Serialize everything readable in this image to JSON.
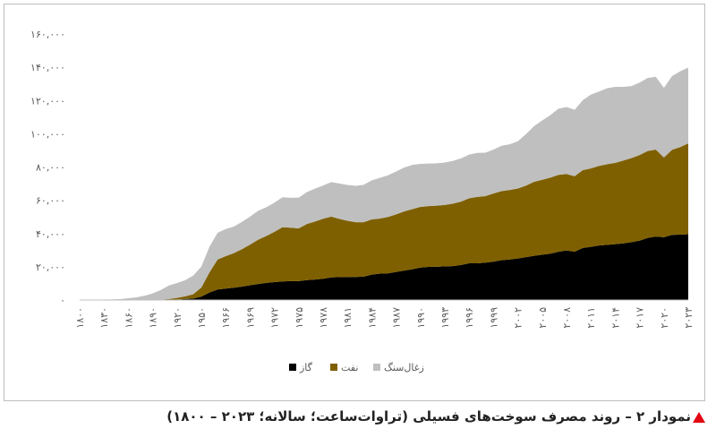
{
  "chart_data": {
    "type": "stacked-area",
    "categories": [
      "۱۸۰۰",
      null,
      null,
      "۱۸۳۰",
      null,
      null,
      "۱۸۶۰",
      null,
      null,
      "۱۸۹۰",
      null,
      null,
      "۱۹۲۰",
      null,
      null,
      "۱۹۵۰",
      null,
      null,
      "۱۹۶۶",
      null,
      null,
      "۱۹۶۹",
      null,
      null,
      "۱۹۷۲",
      null,
      null,
      "۱۹۷۵",
      null,
      null,
      "۱۹۷۸",
      null,
      null,
      "۱۹۸۱",
      null,
      null,
      "۱۹۸۴",
      null,
      null,
      "۱۹۸۷",
      null,
      null,
      "۱۹۹۰",
      null,
      null,
      "۱۹۹۳",
      null,
      null,
      "۱۹۹۶",
      null,
      null,
      "۱۹۹۹",
      null,
      null,
      "۲۰۰۲",
      null,
      null,
      "۲۰۰۵",
      null,
      null,
      "۲۰۰۸",
      null,
      null,
      "۲۰۱۱",
      null,
      null,
      "۲۰۱۴",
      null,
      null,
      "۲۰۱۷",
      null,
      null,
      "۲۰۲۰",
      null,
      null,
      "۲۰۲۳"
    ],
    "series": [
      {
        "name": "گاز",
        "color": "#000000",
        "values": [
          0,
          0,
          0,
          0,
          0,
          0,
          0,
          0,
          0,
          12,
          64,
          150,
          250,
          600,
          900,
          2100,
          4500,
          6300,
          6900,
          7400,
          8100,
          8900,
          9600,
          10300,
          10800,
          11200,
          11400,
          11400,
          12000,
          12300,
          12800,
          13600,
          13800,
          13900,
          13900,
          14100,
          15300,
          15900,
          16000,
          16900,
          17700,
          18500,
          19500,
          19900,
          20000,
          20300,
          20400,
          21100,
          22100,
          22100,
          22500,
          23100,
          24000,
          24400,
          25000,
          25800,
          26600,
          27300,
          27900,
          29000,
          29800,
          29100,
          31300,
          32000,
          32800,
          33200,
          33600,
          34100,
          34800,
          35700,
          37400,
          38200,
          37800,
          39200,
          39300,
          39600
        ]
      },
      {
        "name": "نفت",
        "color": "#7f6000",
        "values": [
          0,
          0,
          0,
          0,
          0,
          0,
          0,
          0,
          0,
          77,
          181,
          478,
          1000,
          1650,
          2600,
          5440,
          12100,
          18100,
          19500,
          20800,
          22500,
          24400,
          26700,
          28200,
          30200,
          32600,
          32100,
          31700,
          33700,
          34900,
          36100,
          36600,
          35000,
          33800,
          32900,
          32700,
          33200,
          33100,
          34000,
          34600,
          35600,
          36200,
          36500,
          36600,
          36800,
          36900,
          37600,
          38100,
          39100,
          39900,
          40000,
          41000,
          41500,
          41800,
          42100,
          43000,
          44500,
          45000,
          45700,
          46300,
          46000,
          45400,
          46800,
          47200,
          47900,
          48500,
          48900,
          49800,
          50600,
          51500,
          52200,
          52300,
          47900,
          51200,
          52700,
          54600
        ]
      },
      {
        "name": "زغال‌سنگ",
        "color": "#bfbfbf",
        "values": [
          97,
          128,
          153,
          264,
          356,
          569,
          1061,
          1642,
          2542,
          3856,
          5728,
          8107,
          9000,
          9700,
          11200,
          12600,
          15440,
          16100,
          16300,
          16000,
          16400,
          16900,
          17400,
          17300,
          17600,
          18000,
          18000,
          18500,
          19200,
          19800,
          20000,
          20700,
          21300,
          21500,
          21900,
          22500,
          23500,
          24500,
          25000,
          25800,
          26400,
          26600,
          25900,
          25600,
          25400,
          25500,
          25700,
          26000,
          26300,
          26500,
          26100,
          26400,
          27300,
          27500,
          28400,
          31000,
          33500,
          35700,
          37600,
          39800,
          40300,
          39900,
          42100,
          44400,
          44700,
          45700,
          45700,
          44300,
          43300,
          43600,
          44000,
          43800,
          41900,
          44300,
          45600,
          45600
        ]
      }
    ],
    "ylim": [
      0,
      160000
    ],
    "yticks": [
      {
        "value": 0,
        "label": "۰"
      },
      {
        "value": 20000,
        "label": "۲۰,۰۰۰"
      },
      {
        "value": 40000,
        "label": "۴۰,۰۰۰"
      },
      {
        "value": 60000,
        "label": "۶۰,۰۰۰"
      },
      {
        "value": 80000,
        "label": "۸۰,۰۰۰"
      },
      {
        "value": 100000,
        "label": "۱۰۰,۰۰۰"
      },
      {
        "value": 120000,
        "label": "۱۲۰,۰۰۰"
      },
      {
        "value": 140000,
        "label": "۱۴۰,۰۰۰"
      },
      {
        "value": 160000,
        "label": "۱۶۰,۰۰۰"
      }
    ],
    "grid": false
  },
  "caption": "نمودار ۲ – روند مصرف سوخت‌های فسیلی (تراوات‌ساعت؛ سالانه؛ ۲۰۲۳ – ۱۸۰۰)"
}
